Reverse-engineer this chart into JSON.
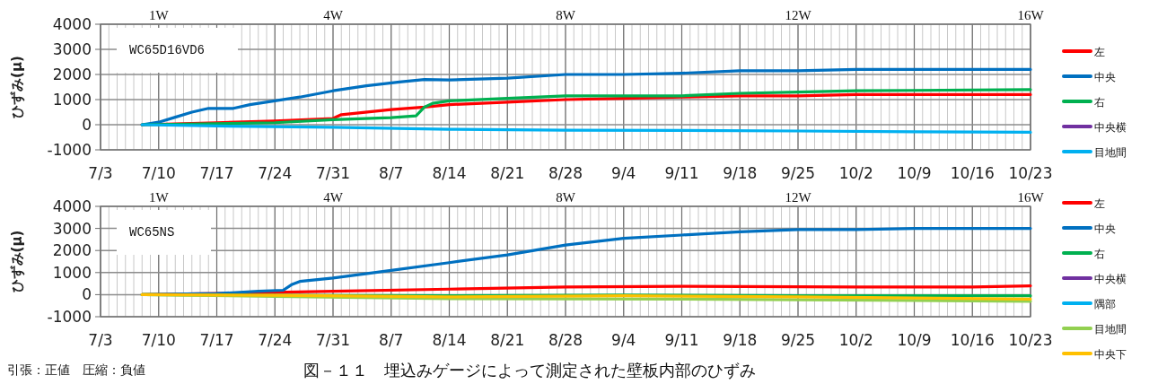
{
  "chart_data": [
    {
      "type": "line",
      "ylabel": "ひずみ(μ)",
      "annotations": [
        "WC65D16VD6"
      ],
      "xlim": [
        "--07-03",
        "--10-23"
      ],
      "xticks": [
        {
          "value": "--07-03",
          "label": "7/3"
        },
        {
          "value": "--07-10",
          "label": "7/10"
        },
        {
          "value": "--07-17",
          "label": "7/17"
        },
        {
          "value": "--07-24",
          "label": "7/24"
        },
        {
          "value": "--07-31",
          "label": "7/31"
        },
        {
          "value": "--08-07",
          "label": "8/7"
        },
        {
          "value": "--08-14",
          "label": "8/14"
        },
        {
          "value": "--08-21",
          "label": "8/21"
        },
        {
          "value": "--08-28",
          "label": "8/28"
        },
        {
          "value": "--09-04",
          "label": "9/4"
        },
        {
          "value": "--09-11",
          "label": "9/11"
        },
        {
          "value": "--09-18",
          "label": "9/18"
        },
        {
          "value": "--09-25",
          "label": "9/25"
        },
        {
          "value": "--10-02",
          "label": "10/2"
        },
        {
          "value": "--10-09",
          "label": "10/9"
        },
        {
          "value": "--10-16",
          "label": "10/16"
        },
        {
          "value": "--10-23",
          "label": "10/23"
        }
      ],
      "x2lim": [
        "--07-03",
        "--10-23"
      ],
      "x2ticks": [
        {
          "value": "--07-10",
          "label": "1W"
        },
        {
          "value": "--07-31",
          "label": "4W"
        },
        {
          "value": "--08-28",
          "label": "8W"
        },
        {
          "value": "--09-25",
          "label": "12W"
        },
        {
          "value": "--10-23",
          "label": "16W"
        }
      ],
      "ylim": [
        -1000,
        4000
      ],
      "yticks": [
        -1000,
        0,
        1000,
        2000,
        3000,
        4000
      ],
      "grid": true,
      "legend": "right",
      "line_style": "solid",
      "marker": "none",
      "series": [
        {
          "name": "左",
          "color": "#ff0000",
          "x": [
            "--07-08",
            "--07-17",
            "--07-24",
            "--07-31",
            "--08-01",
            "--08-07",
            "--08-11",
            "--08-14",
            "--08-21",
            "--08-28",
            "--09-04",
            "--09-11",
            "--09-18",
            "--09-25",
            "--10-02",
            "--10-23"
          ],
          "values": [
            0,
            80,
            150,
            250,
            400,
            600,
            700,
            800,
            900,
            1000,
            1050,
            1100,
            1150,
            1150,
            1200,
            1200
          ]
        },
        {
          "name": "中央",
          "color": "#0070c0",
          "x": [
            "--07-08",
            "--07-10",
            "--07-12",
            "--07-14",
            "--07-16",
            "--07-19",
            "--07-21",
            "--07-24",
            "--07-27",
            "--07-31",
            "--08-04",
            "--08-08",
            "--08-11",
            "--08-14",
            "--08-21",
            "--08-28",
            "--09-04",
            "--09-11",
            "--09-18",
            "--09-25",
            "--10-02",
            "--10-09",
            "--10-16",
            "--10-23"
          ],
          "values": [
            0,
            100,
            300,
            500,
            650,
            650,
            800,
            950,
            1100,
            1350,
            1550,
            1700,
            1800,
            1780,
            1850,
            2000,
            2000,
            2050,
            2150,
            2150,
            2200,
            2200,
            2200,
            2200
          ]
        },
        {
          "name": "右",
          "color": "#00b050",
          "x": [
            "--07-08",
            "--07-24",
            "--07-31",
            "--08-07",
            "--08-10",
            "--08-11",
            "--08-12",
            "--08-14",
            "--08-21",
            "--08-28",
            "--09-04",
            "--09-11",
            "--09-18",
            "--09-25",
            "--10-02",
            "--10-23"
          ],
          "values": [
            0,
            80,
            200,
            280,
            350,
            700,
            850,
            950,
            1050,
            1150,
            1150,
            1150,
            1250,
            1300,
            1350,
            1400
          ]
        },
        {
          "name": "中央横",
          "color": "#7030a0"
        },
        {
          "name": "目地間",
          "color": "#00b0f0",
          "x": [
            "--07-08",
            "--07-17",
            "--07-31",
            "--08-14",
            "--08-28",
            "--09-11",
            "--09-25",
            "--10-09",
            "--10-23"
          ],
          "values": [
            0,
            -50,
            -100,
            -180,
            -220,
            -230,
            -250,
            -280,
            -300
          ]
        }
      ]
    },
    {
      "type": "line",
      "ylabel": "ひずみ(μ)",
      "annotations": [
        "WC65NS",
        "引張：正値　圧縮：負値",
        "図－１１　埋込みゲージによって測定された壁板内部のひずみ"
      ],
      "xlim": [
        "--07-03",
        "--10-23"
      ],
      "xticks": [
        {
          "value": "--07-03",
          "label": "7/3"
        },
        {
          "value": "--07-10",
          "label": "7/10"
        },
        {
          "value": "--07-17",
          "label": "7/17"
        },
        {
          "value": "--07-24",
          "label": "7/24"
        },
        {
          "value": "--07-31",
          "label": "7/31"
        },
        {
          "value": "--08-07",
          "label": "8/7"
        },
        {
          "value": "--08-14",
          "label": "8/14"
        },
        {
          "value": "--08-21",
          "label": "8/21"
        },
        {
          "value": "--08-28",
          "label": "8/28"
        },
        {
          "value": "--09-04",
          "label": "9/4"
        },
        {
          "value": "--09-11",
          "label": "9/11"
        },
        {
          "value": "--09-18",
          "label": "9/18"
        },
        {
          "value": "--09-25",
          "label": "9/25"
        },
        {
          "value": "--10-02",
          "label": "10/2"
        },
        {
          "value": "--10-09",
          "label": "10/9"
        },
        {
          "value": "--10-16",
          "label": "10/16"
        },
        {
          "value": "--10-23",
          "label": "10/23"
        }
      ],
      "x2lim": [
        "--07-03",
        "--10-23"
      ],
      "x2ticks": [
        {
          "value": "--07-10",
          "label": "1W"
        },
        {
          "value": "--07-31",
          "label": "4W"
        },
        {
          "value": "--08-28",
          "label": "8W"
        },
        {
          "value": "--09-25",
          "label": "12W"
        },
        {
          "value": "--10-23",
          "label": "16W"
        }
      ],
      "ylim": [
        -1000,
        4000
      ],
      "yticks": [
        -1000,
        0,
        1000,
        2000,
        3000,
        4000
      ],
      "grid": true,
      "legend": "right",
      "line_style": "solid",
      "marker": "none",
      "series": [
        {
          "name": "左",
          "color": "#ff0000",
          "x": [
            "--07-08",
            "--07-24",
            "--07-31",
            "--08-14",
            "--08-28",
            "--09-11",
            "--10-02",
            "--10-16",
            "--10-23"
          ],
          "values": [
            0,
            100,
            150,
            250,
            350,
            380,
            350,
            350,
            400
          ]
        },
        {
          "name": "中央",
          "color": "#0070c0",
          "x": [
            "--07-08",
            "--07-17",
            "--07-22",
            "--07-25",
            "--07-26",
            "--07-27",
            "--07-31",
            "--08-07",
            "--08-14",
            "--08-21",
            "--08-28",
            "--09-04",
            "--09-11",
            "--09-18",
            "--09-25",
            "--10-02",
            "--10-09",
            "--10-23"
          ],
          "values": [
            0,
            50,
            150,
            200,
            450,
            600,
            750,
            1100,
            1450,
            1800,
            2250,
            2550,
            2700,
            2850,
            2950,
            2950,
            3000,
            3000
          ]
        },
        {
          "name": "右",
          "color": "#00b050",
          "x": [
            "--07-08",
            "--07-24",
            "--08-14",
            "--09-04",
            "--09-25",
            "--10-23"
          ],
          "values": [
            0,
            -30,
            -50,
            -20,
            -50,
            -50
          ]
        },
        {
          "name": "中央横",
          "color": "#7030a0"
        },
        {
          "name": "隅部",
          "color": "#00b0f0"
        },
        {
          "name": "目地間",
          "color": "#92d050",
          "x": [
            "--07-08",
            "--07-24",
            "--08-14",
            "--09-11",
            "--10-23"
          ],
          "values": [
            0,
            -80,
            -180,
            -200,
            -300
          ]
        },
        {
          "name": "中央下",
          "color": "#ffc000",
          "x": [
            "--07-08",
            "--07-24",
            "--08-14",
            "--09-04",
            "--09-25",
            "--10-23"
          ],
          "values": [
            0,
            -30,
            -100,
            -50,
            -100,
            -200
          ]
        }
      ]
    }
  ]
}
